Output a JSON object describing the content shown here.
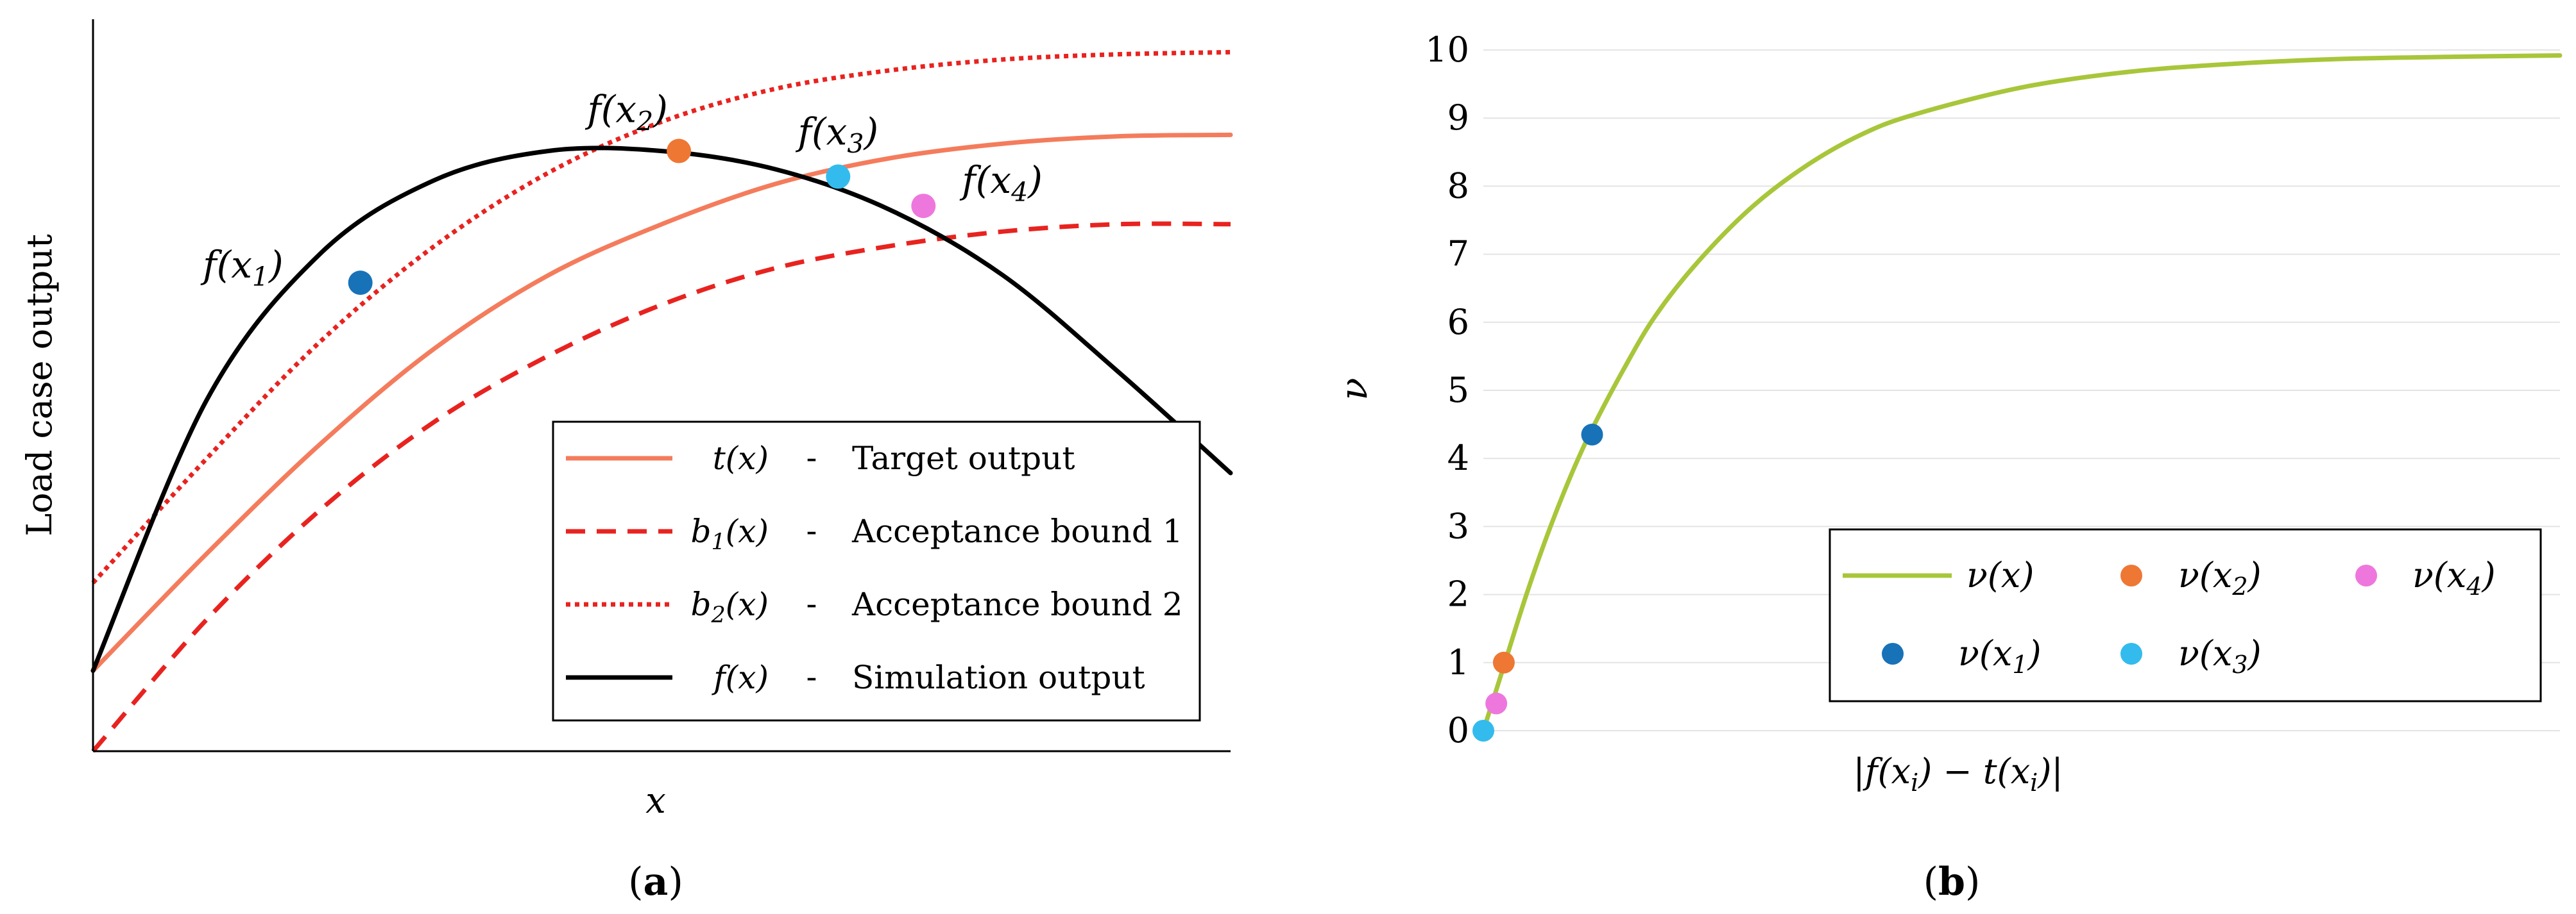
{
  "panels": [
    {
      "caption": "(a)",
      "caption_parts": {
        "open": "(",
        "letter": "a",
        "close": ")"
      }
    },
    {
      "caption": "(b)",
      "caption_parts": {
        "open": "(",
        "letter": "b",
        "close": ")"
      }
    }
  ],
  "colors": {
    "target": "#f47c5c",
    "bound": "#e8231f",
    "simulation": "#000000",
    "nu_curve": "#a8c63a",
    "p1": "#1872b8",
    "p2": "#ee7733",
    "p3": "#33bbee",
    "p4": "#ee77dd",
    "grid": "#e4e4e4"
  },
  "chart_data": [
    {
      "type": "line",
      "xlabel": "x",
      "ylabel": "Load case output",
      "xlim": [
        0,
        1
      ],
      "ylim": [
        0,
        1
      ],
      "x_ticks_shown": false,
      "y_ticks_shown": false,
      "series": [
        {
          "key": "t",
          "color_key": "target",
          "dash": "solid",
          "x": [
            0,
            0.1,
            0.2,
            0.3,
            0.4,
            0.5,
            0.6,
            0.7,
            0.8,
            0.9,
            1.0
          ],
          "y": [
            0.11,
            0.27,
            0.42,
            0.55,
            0.65,
            0.72,
            0.775,
            0.81,
            0.83,
            0.84,
            0.842
          ]
        },
        {
          "key": "b1",
          "color_key": "bound",
          "dash": "dashed",
          "x": [
            0,
            0.1,
            0.2,
            0.3,
            0.4,
            0.5,
            0.6,
            0.7,
            0.8,
            0.9,
            1.0
          ],
          "y": [
            0,
            0.18,
            0.33,
            0.45,
            0.54,
            0.61,
            0.66,
            0.69,
            0.71,
            0.72,
            0.72
          ]
        },
        {
          "key": "b2",
          "color_key": "bound",
          "dash": "dotted",
          "x": [
            0,
            0.1,
            0.2,
            0.3,
            0.4,
            0.5,
            0.6,
            0.7,
            0.8,
            0.9,
            1.0
          ],
          "y": [
            0.23,
            0.4,
            0.56,
            0.69,
            0.79,
            0.86,
            0.905,
            0.93,
            0.945,
            0.952,
            0.955
          ]
        },
        {
          "key": "f",
          "color_key": "simulation",
          "dash": "solid",
          "x": [
            0,
            0.1,
            0.2,
            0.3,
            0.4,
            0.5,
            0.6,
            0.7,
            0.8,
            0.9,
            1.0
          ],
          "y": [
            0.11,
            0.48,
            0.68,
            0.78,
            0.82,
            0.82,
            0.795,
            0.74,
            0.65,
            0.52,
            0.38
          ]
        }
      ],
      "points": [
        {
          "x": 0.235,
          "y": 0.64,
          "color_key": "p1",
          "label": {
            "base": "f",
            "open": "(x",
            "sub": "1",
            "close": ")"
          }
        },
        {
          "x": 0.515,
          "y": 0.82,
          "color_key": "p2",
          "label": {
            "base": "f",
            "open": "(x",
            "sub": "2",
            "close": ")"
          }
        },
        {
          "x": 0.655,
          "y": 0.785,
          "color_key": "p3",
          "label": {
            "base": "f",
            "open": "(x",
            "sub": "3",
            "close": ")"
          }
        },
        {
          "x": 0.73,
          "y": 0.745,
          "color_key": "p4",
          "label": {
            "base": "f",
            "open": "(x",
            "sub": "4",
            "close": ")"
          }
        }
      ],
      "legend": {
        "position": "bottom-right",
        "entries": [
          {
            "color_key": "target",
            "dash": "solid",
            "sym": {
              "base": "t",
              "sub": "",
              "arg": "(x)"
            },
            "sep": "-",
            "text": "Target output"
          },
          {
            "color_key": "bound",
            "dash": "dashed",
            "sym": {
              "base": "b",
              "sub": "1",
              "arg": "(x)"
            },
            "sep": "-",
            "text": "Acceptance bound 1"
          },
          {
            "color_key": "bound",
            "dash": "dotted",
            "sym": {
              "base": "b",
              "sub": "2",
              "arg": "(x)"
            },
            "sep": "-",
            "text": "Acceptance bound 2"
          },
          {
            "color_key": "simulation",
            "dash": "solid",
            "sym": {
              "base": "f",
              "sub": "",
              "arg": "(x)"
            },
            "sep": "-",
            "text": "Simulation output"
          }
        ]
      }
    },
    {
      "type": "line",
      "xlabel_parts": {
        "a": "|f(x",
        "a_sub": "i",
        "b": ") − t(x",
        "b_sub": "i",
        "c": ")|"
      },
      "ylabel": "ν",
      "xlim": [
        0,
        1
      ],
      "ylim": [
        0,
        10
      ],
      "grid": true,
      "y_ticks": [
        "0",
        "1",
        "2",
        "3",
        "4",
        "5",
        "6",
        "7",
        "8",
        "9",
        "10"
      ],
      "series": [
        {
          "key": "nu",
          "color_key": "nu_curve",
          "dash": "solid",
          "x": [
            0,
            0.02,
            0.04,
            0.06,
            0.08,
            0.1,
            0.13,
            0.16,
            0.2,
            0.25,
            0.3,
            0.35,
            0.4,
            0.5,
            0.6,
            0.7,
            0.8,
            0.9,
            1.0
          ],
          "y": [
            0,
            1.0,
            2.0,
            2.9,
            3.7,
            4.4,
            5.3,
            6.1,
            6.9,
            7.7,
            8.3,
            8.75,
            9.05,
            9.45,
            9.68,
            9.8,
            9.87,
            9.9,
            9.92
          ]
        }
      ],
      "points": [
        {
          "x": 0.0,
          "y": 0.0,
          "color_key": "p3"
        },
        {
          "x": 0.012,
          "y": 0.4,
          "color_key": "p4"
        },
        {
          "x": 0.019,
          "y": 1.0,
          "color_key": "p2"
        },
        {
          "x": 0.101,
          "y": 4.35,
          "color_key": "p1"
        }
      ],
      "legend": {
        "position": "bottom-right",
        "entries": [
          {
            "kind": "line",
            "color_key": "nu_curve",
            "base": "ν",
            "arg": "(x)",
            "sub": "",
            "close": ""
          },
          {
            "kind": "dot",
            "color_key": "p2",
            "base": "ν",
            "arg": "(x",
            "sub": "2",
            "close": ")"
          },
          {
            "kind": "dot",
            "color_key": "p4",
            "base": "ν",
            "arg": "(x",
            "sub": "4",
            "close": ")"
          },
          {
            "kind": "dot",
            "color_key": "p1",
            "base": "ν",
            "arg": "(x",
            "sub": "1",
            "close": ")"
          },
          {
            "kind": "dot",
            "color_key": "p3",
            "base": "ν",
            "arg": "(x",
            "sub": "3",
            "close": ")"
          }
        ]
      }
    }
  ]
}
